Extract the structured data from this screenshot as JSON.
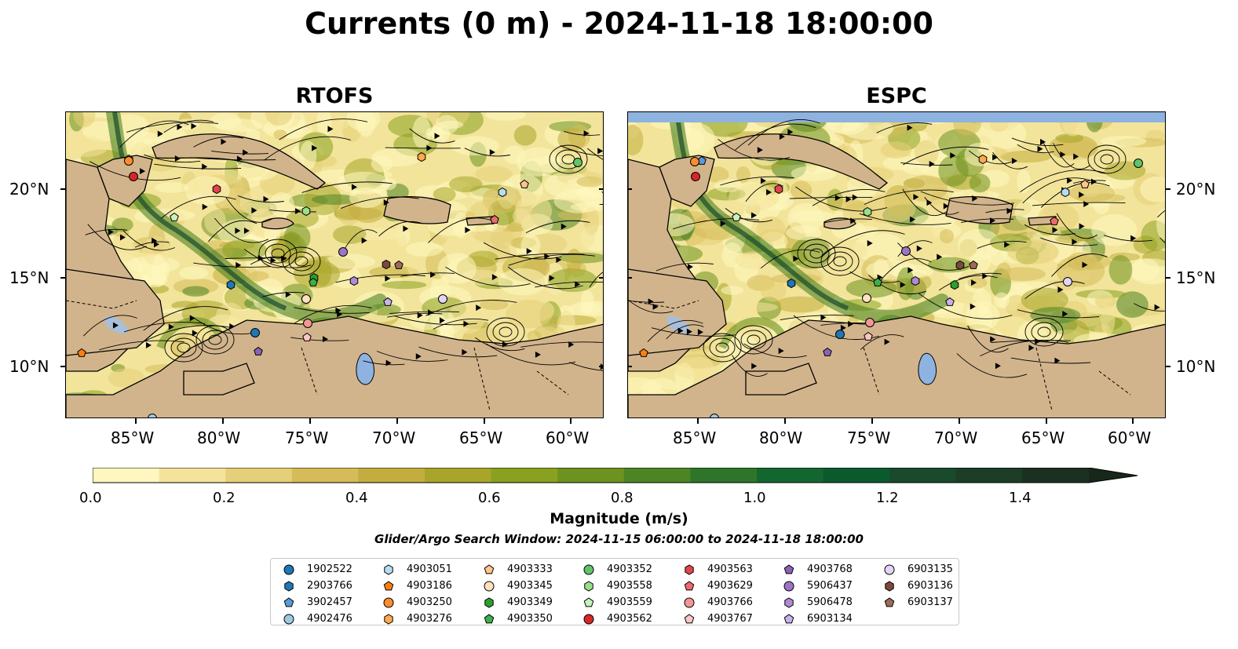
{
  "title": "Currents (0 m) - 2024-11-18 18:00:00",
  "panels": [
    {
      "title": "RTOFS"
    },
    {
      "title": "ESPC"
    }
  ],
  "axes": {
    "lat_labels": [
      "20°N",
      "15°N",
      "10°N"
    ],
    "lon_labels": [
      "85°W",
      "80°W",
      "75°W",
      "70°W",
      "65°W",
      "60°W"
    ]
  },
  "colorbar": {
    "label": "Magnitude (m/s)",
    "ticks": [
      "0.0",
      "0.2",
      "0.4",
      "0.6",
      "0.8",
      "1.0",
      "1.2",
      "1.4"
    ],
    "colors": [
      "#fff7bf",
      "#f4e39a",
      "#e6cf79",
      "#d6bb59",
      "#c2ad3e",
      "#a8a52a",
      "#8aa021",
      "#6d9220",
      "#4d8424",
      "#2f7529",
      "#136630",
      "#0b5a2e",
      "#184a2b",
      "#1d3d26",
      "#1a3020",
      "#17271a"
    ]
  },
  "search_window": "Glider/Argo Search Window: 2024-11-15 06:00:00 to 2024-11-18 18:00:00",
  "legend": {
    "items": [
      {
        "id": "1902522",
        "marker": "circle",
        "color": "#1f77b4"
      },
      {
        "id": "2903766",
        "marker": "hexagon",
        "color": "#1f77b4"
      },
      {
        "id": "3902457",
        "marker": "pentagon",
        "color": "#5b9bd5"
      },
      {
        "id": "4902476",
        "marker": "circle",
        "color": "#9ecae1"
      },
      {
        "id": "4903051",
        "marker": "hexagon",
        "color": "#b7dcf2"
      },
      {
        "id": "4903186",
        "marker": "pentagon",
        "color": "#ff7f0e"
      },
      {
        "id": "4903250",
        "marker": "circle",
        "color": "#ff8c2e"
      },
      {
        "id": "4903276",
        "marker": "hexagon",
        "color": "#ffa94d"
      },
      {
        "id": "4903333",
        "marker": "pentagon",
        "color": "#ffc58a"
      },
      {
        "id": "4903345",
        "marker": "circle",
        "color": "#ffe1bf"
      },
      {
        "id": "4903349",
        "marker": "hexagon",
        "color": "#2ca02c"
      },
      {
        "id": "4903350",
        "marker": "pentagon",
        "color": "#3cb04a"
      },
      {
        "id": "4903352",
        "marker": "circle",
        "color": "#62c46a"
      },
      {
        "id": "4903558",
        "marker": "hexagon",
        "color": "#98df8a"
      },
      {
        "id": "4903559",
        "marker": "pentagon",
        "color": "#c7f2bf"
      },
      {
        "id": "4903562",
        "marker": "circle",
        "color": "#d62728"
      },
      {
        "id": "4903563",
        "marker": "hexagon",
        "color": "#e3434a"
      },
      {
        "id": "4903629",
        "marker": "pentagon",
        "color": "#ee6a6e"
      },
      {
        "id": "4903766",
        "marker": "circle",
        "color": "#f39696"
      },
      {
        "id": "4903767",
        "marker": "pentagon",
        "color": "#fcc7c3"
      },
      {
        "id": "4903768",
        "marker": "pentagon",
        "color": "#8c62b5"
      },
      {
        "id": "5906437",
        "marker": "circle",
        "color": "#9d74c9"
      },
      {
        "id": "5906478",
        "marker": "hexagon",
        "color": "#b08ad6"
      },
      {
        "id": "6903134",
        "marker": "pentagon",
        "color": "#c8b2ea"
      },
      {
        "id": "6903135",
        "marker": "circle",
        "color": "#e3d4f5"
      },
      {
        "id": "6903136",
        "marker": "hexagon",
        "color": "#7b4a3c"
      },
      {
        "id": "6903137",
        "marker": "pentagon",
        "color": "#9c6b5a"
      }
    ]
  }
}
